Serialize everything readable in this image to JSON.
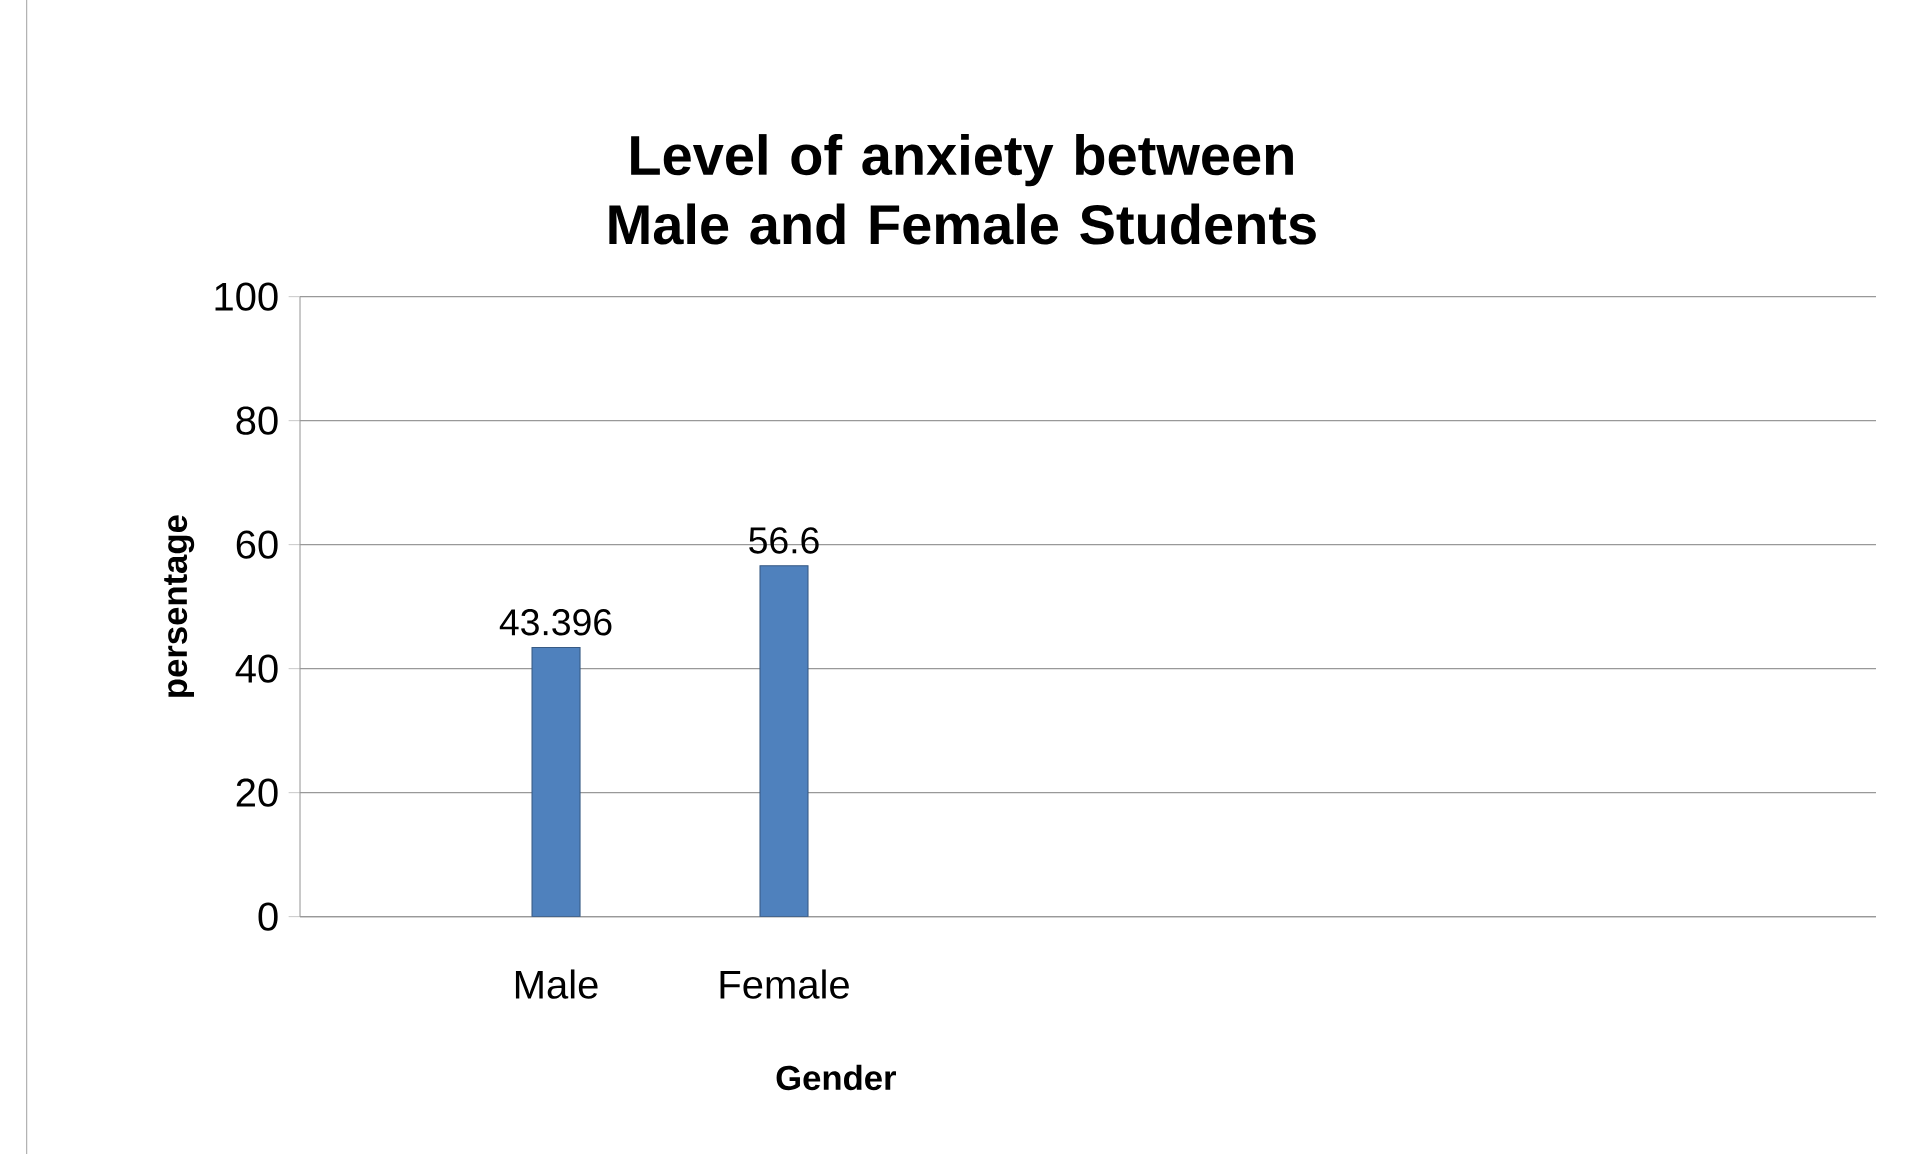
{
  "chart_data": {
    "type": "bar",
    "title": "Level of anxiety between Male and Female Students",
    "xlabel": "Gender",
    "ylabel": "persentage",
    "categories": [
      "Male",
      "Female"
    ],
    "values": [
      43.396,
      56.6
    ],
    "color": "#4f81bd",
    "ylim": [
      0,
      100
    ],
    "yticks": [
      0,
      20,
      40,
      60,
      80,
      100
    ],
    "grid": "y",
    "data_labels": true
  }
}
